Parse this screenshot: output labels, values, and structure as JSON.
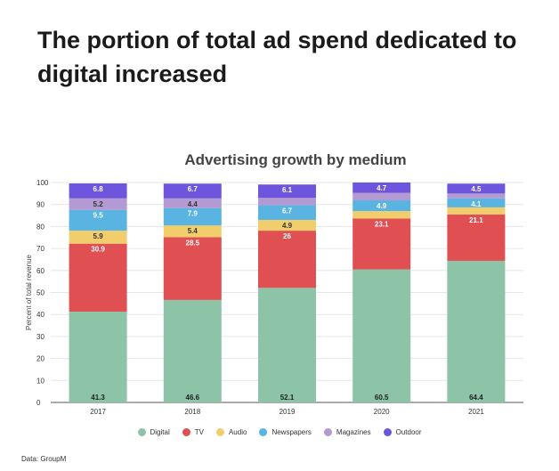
{
  "headline": "The portion of total ad spend dedicated to digital increased",
  "source": "Data: GroupM",
  "chart_data": {
    "type": "bar",
    "stacked": true,
    "title": "Advertising growth by medium",
    "xlabel": "",
    "ylabel": "Percent of total revenue",
    "ylim": [
      0,
      100
    ],
    "yticks": [
      0,
      10,
      20,
      30,
      40,
      50,
      60,
      70,
      80,
      90,
      100
    ],
    "categories": [
      "2017",
      "2018",
      "2019",
      "2020",
      "2021"
    ],
    "legend_position": "bottom",
    "series": [
      {
        "name": "Digital",
        "color": "#8dc3a6",
        "values": [
          41.3,
          46.6,
          52.1,
          60.5,
          64.4
        ],
        "labels": [
          "41.3",
          "46.6",
          "52.1",
          "60.5",
          "64.4"
        ]
      },
      {
        "name": "TV",
        "color": "#e04f52",
        "values": [
          30.9,
          28.5,
          26,
          23.1,
          21.1
        ],
        "labels": [
          "30.9",
          "28.5",
          "26",
          "23.1",
          "21.1"
        ]
      },
      {
        "name": "Audio",
        "color": "#f2cd6b",
        "values": [
          5.9,
          5.4,
          4.9,
          3.4,
          3.2
        ],
        "labels": [
          "5.9",
          "5.4",
          "4.9",
          "",
          ""
        ]
      },
      {
        "name": "Newspapers",
        "color": "#5ab4e2",
        "values": [
          9.5,
          7.9,
          6.7,
          4.9,
          4.1
        ],
        "labels": [
          "9.5",
          "7.9",
          "6.7",
          "4.9",
          "4.1"
        ]
      },
      {
        "name": "Magazines",
        "color": "#b49ad2",
        "values": [
          5.2,
          4.4,
          3.3,
          3.4,
          2.2
        ],
        "labels": [
          "5.2",
          "4.4",
          "",
          "",
          ""
        ]
      },
      {
        "name": "Outdoor",
        "color": "#6d56dd",
        "values": [
          6.8,
          6.7,
          6.1,
          4.7,
          4.5
        ],
        "labels": [
          "6.8",
          "6.7",
          "6.1",
          "4.7",
          "4.5"
        ]
      }
    ]
  }
}
